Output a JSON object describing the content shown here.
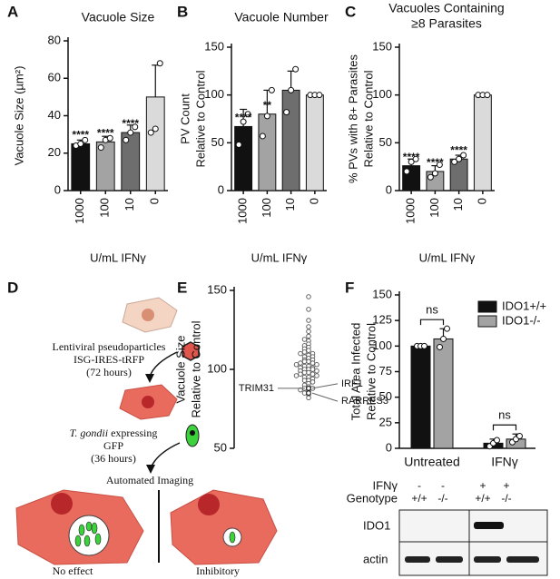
{
  "chart_data": [
    {
      "type": "bar",
      "panel": "A",
      "title": [
        "Vacuole Size"
      ],
      "ylabel": [
        "Vacuole Size (µm²)"
      ],
      "xlabel": "U/mL IFNγ",
      "categories": [
        "1000",
        "100",
        "10",
        "0"
      ],
      "values": [
        25,
        26,
        31,
        50
      ],
      "errors": [
        2,
        3,
        4,
        17
      ],
      "points": [
        [
          24,
          25,
          27
        ],
        [
          23,
          27,
          28
        ],
        [
          27,
          31,
          34
        ],
        [
          31,
          33,
          68
        ]
      ],
      "annotations": [
        "****",
        "****",
        "****",
        null
      ],
      "colors": [
        "#111111",
        "#a3a3a3",
        "#6e6e6e",
        "#dadada"
      ],
      "ylim": [
        0,
        80
      ],
      "yticks": [
        0,
        20,
        40,
        60,
        80
      ]
    },
    {
      "type": "bar",
      "panel": "B",
      "title": [
        "Vacuole Number"
      ],
      "ylabel": [
        "PV Count",
        "Relative to Control"
      ],
      "xlabel": "U/mL IFNγ",
      "categories": [
        "1000",
        "100",
        "10",
        "0"
      ],
      "values": [
        67,
        80,
        105,
        100
      ],
      "errors": [
        18,
        25,
        20,
        1
      ],
      "points": [
        [
          48,
          72,
          80
        ],
        [
          57,
          78,
          105
        ],
        [
          82,
          105,
          127
        ],
        [
          100,
          100,
          100
        ]
      ],
      "annotations": [
        "****",
        "**",
        null,
        null
      ],
      "colors": [
        "#111111",
        "#a3a3a3",
        "#6e6e6e",
        "#dadada"
      ],
      "ylim": [
        0,
        150
      ],
      "yticks": [
        0,
        50,
        100,
        150
      ]
    },
    {
      "type": "bar",
      "panel": "C",
      "title": [
        "Vacuoles Containing",
        "≥8 Parasites"
      ],
      "ylabel": [
        "% PVs with 8+ Parasites",
        "Relative to Control"
      ],
      "xlabel": "U/mL IFNγ",
      "categories": [
        "1000",
        "100",
        "10",
        "0"
      ],
      "values": [
        26,
        20,
        33,
        100
      ],
      "errors": [
        7,
        6,
        4,
        1
      ],
      "points": [
        [
          20,
          30,
          33
        ],
        [
          14,
          18,
          27
        ],
        [
          30,
          33,
          37
        ],
        [
          100,
          100,
          100
        ]
      ],
      "annotations": [
        "****",
        "****",
        "****",
        null
      ],
      "colors": [
        "#111111",
        "#a3a3a3",
        "#6e6e6e",
        "#dadada"
      ],
      "ylim": [
        0,
        150
      ],
      "yticks": [
        0,
        50,
        100,
        150
      ]
    },
    {
      "type": "swarm",
      "panel": "E",
      "ylabel": [
        "Vacuole Size",
        "Relative to Control"
      ],
      "values": [
        146,
        138,
        131,
        127,
        124,
        121,
        119,
        118,
        116,
        115,
        114,
        113,
        112,
        111,
        110,
        110,
        109,
        108,
        108,
        107,
        106,
        106,
        105,
        105,
        104,
        104,
        103,
        103,
        102,
        102,
        101,
        101,
        100,
        100,
        100,
        99,
        99,
        98,
        98,
        97,
        97,
        96,
        96,
        95,
        95,
        94,
        93,
        93,
        92,
        91,
        90,
        89,
        88,
        88,
        87,
        86,
        85,
        84,
        82
      ],
      "annotations": [
        {
          "label": "TRIM31",
          "value": 88
        },
        {
          "label": "IRF1",
          "value": 88
        },
        {
          "label": "RARRES3",
          "value": 85
        }
      ],
      "color": "#555555",
      "ylim": [
        50,
        150
      ],
      "yticks": [
        50,
        100,
        150
      ]
    },
    {
      "type": "grouped-bar",
      "panel": "F",
      "ylabel": [
        "Total Area Infected",
        "Relative to Control"
      ],
      "categories": [
        "Untreated",
        "IFNγ"
      ],
      "series": [
        {
          "name": "IDO1+/+",
          "color": "#111111",
          "values": [
            100,
            5
          ],
          "errors": [
            1,
            4
          ],
          "points": [
            [
              100,
              100,
              100
            ],
            [
              2,
              5,
              8
            ]
          ]
        },
        {
          "name": "IDO1-/-",
          "color": "#a3a3a3",
          "values": [
            107,
            9
          ],
          "errors": [
            10,
            5
          ],
          "points": [
            [
              99,
              107,
              117
            ],
            [
              6,
              9,
              12
            ]
          ]
        }
      ],
      "annotations": [
        "ns",
        "ns"
      ],
      "ylim": [
        0,
        150
      ],
      "yticks": [
        0,
        25,
        50,
        75,
        100,
        125,
        150
      ]
    }
  ],
  "diagram": {
    "panel": "D",
    "step1": [
      "Lentiviral pseudoparticles",
      "ISG-IRES-tRFP",
      "(72 hours)"
    ],
    "organism": "T. gondii",
    "expressing": " expressing",
    "step2": [
      "GFP",
      "(36 hours)"
    ],
    "imaging": "Automated Imaging",
    "outcomes": [
      "No effect",
      "Inhibitory"
    ]
  },
  "blot": {
    "rows": [
      {
        "label": "IFNγ",
        "cells": [
          "-",
          "-",
          "+",
          "+"
        ]
      },
      {
        "label": "Genotype",
        "cells": [
          "+/+",
          "-/-",
          "+/+",
          "-/-"
        ]
      }
    ],
    "bands": [
      "IDO1",
      "actin"
    ]
  }
}
